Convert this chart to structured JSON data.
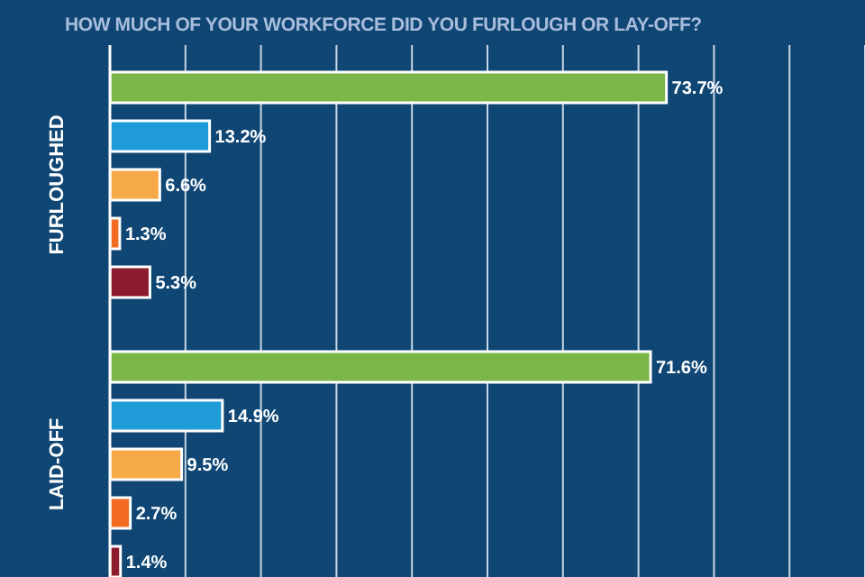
{
  "chart_data": {
    "type": "bar",
    "orientation": "horizontal",
    "title": "HOW MUCH OF YOUR WORKFORCE DID YOU FURLOUGH OR LAY-OFF?",
    "categories": [
      "FURLOUGHED",
      "LAID-OFF"
    ],
    "series": [
      {
        "color": "#7ab648",
        "values": [
          73.7,
          71.6
        ],
        "value_labels": [
          "73.7%",
          "71.6%"
        ]
      },
      {
        "color": "#1f9bd7",
        "values": [
          13.2,
          14.9
        ],
        "value_labels": [
          "13.2%",
          "14.9%"
        ]
      },
      {
        "color": "#f5a947",
        "values": [
          6.6,
          9.5
        ],
        "value_labels": [
          "6.6%",
          "9.5%"
        ]
      },
      {
        "color": "#f26b22",
        "values": [
          1.3,
          2.7
        ],
        "value_labels": [
          "1.3%",
          "2.7%"
        ]
      },
      {
        "color": "#8c1b2e",
        "values": [
          5.3,
          1.4
        ],
        "value_labels": [
          "5.3%",
          "1.4%"
        ]
      }
    ],
    "xlim": [
      0,
      100
    ],
    "xticks": [
      {
        "value": 0,
        "label": null
      },
      {
        "value": 10,
        "label": null
      },
      {
        "value": 20,
        "label": null
      },
      {
        "value": 30,
        "label": null
      },
      {
        "value": 40,
        "label": null
      },
      {
        "value": 50,
        "label": null
      },
      {
        "value": 60,
        "label": null
      },
      {
        "value": 70,
        "label": null
      },
      {
        "value": 80,
        "label": null
      },
      {
        "value": 90,
        "label": null
      },
      {
        "value": 100,
        "label": null
      }
    ],
    "grid": "x",
    "tick_labels": "y"
  }
}
